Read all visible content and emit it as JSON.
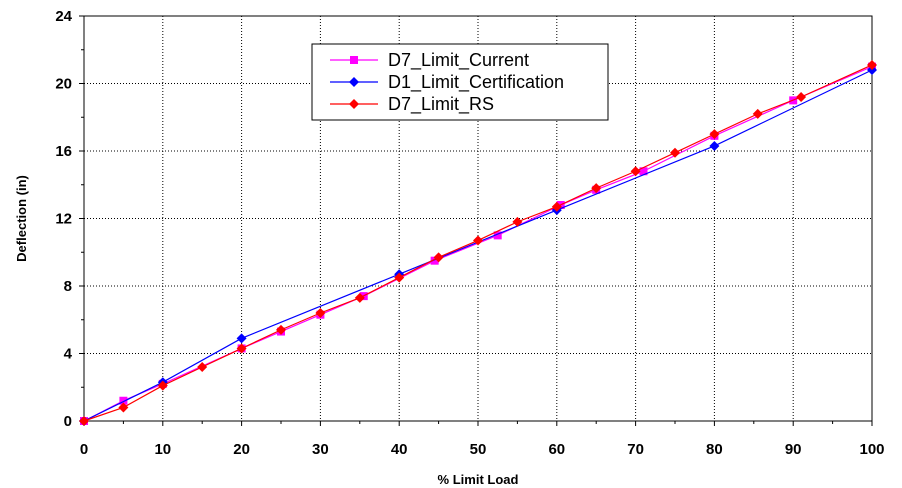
{
  "chart_data": {
    "type": "line",
    "xlabel": "% Limit Load",
    "ylabel": "Deflection (in)",
    "xlim": [
      0,
      100
    ],
    "ylim": [
      0,
      24
    ],
    "xticks": [
      "0",
      "10",
      "20",
      "30",
      "40",
      "50",
      "60",
      "70",
      "80",
      "90",
      "100"
    ],
    "yticks": [
      "0",
      "4",
      "8",
      "12",
      "16",
      "20",
      "24"
    ],
    "grid": true,
    "legend_position": "top-center",
    "series": [
      {
        "name": "D7_Limit_Current",
        "color": "#ff00ff",
        "marker": "square",
        "points": [
          [
            0,
            0.0
          ],
          [
            5,
            1.2
          ],
          [
            10,
            2.2
          ],
          [
            20,
            4.3
          ],
          [
            25,
            5.3
          ],
          [
            30,
            6.3
          ],
          [
            35.5,
            7.4
          ],
          [
            44.5,
            9.5
          ],
          [
            52.5,
            11.0
          ],
          [
            60.5,
            12.8
          ],
          [
            65,
            13.7
          ],
          [
            71,
            14.8
          ],
          [
            80,
            16.9
          ],
          [
            90,
            19.0
          ],
          [
            100,
            21.0
          ]
        ]
      },
      {
        "name": "D1_Limit_Certification",
        "color": "#0000ff",
        "marker": "diamond",
        "points": [
          [
            0,
            0.0
          ],
          [
            10,
            2.3
          ],
          [
            20,
            4.9
          ],
          [
            40,
            8.7
          ],
          [
            60,
            12.5
          ],
          [
            80,
            16.3
          ],
          [
            100,
            20.8
          ]
        ]
      },
      {
        "name": "D7_Limit_RS",
        "color": "#ff0000",
        "marker": "diamond",
        "points": [
          [
            0,
            0.0
          ],
          [
            5,
            0.8
          ],
          [
            10,
            2.1
          ],
          [
            15,
            3.2
          ],
          [
            20,
            4.3
          ],
          [
            25,
            5.4
          ],
          [
            30,
            6.4
          ],
          [
            35,
            7.3
          ],
          [
            40,
            8.5
          ],
          [
            45,
            9.7
          ],
          [
            50,
            10.7
          ],
          [
            55,
            11.8
          ],
          [
            60,
            12.7
          ],
          [
            65,
            13.8
          ],
          [
            70,
            14.8
          ],
          [
            75,
            15.9
          ],
          [
            80,
            17.0
          ],
          [
            85.5,
            18.2
          ],
          [
            91,
            19.2
          ],
          [
            100,
            21.1
          ]
        ]
      }
    ]
  }
}
